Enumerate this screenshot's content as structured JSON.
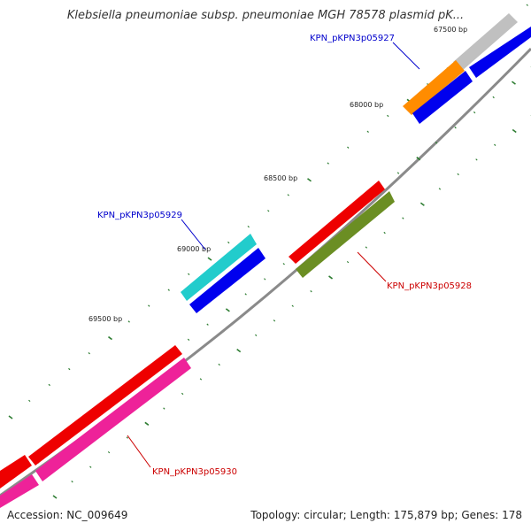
{
  "title": "Klebsiella pneumoniae subsp. pneumoniae MGH 78578 plasmid pK...",
  "footer": {
    "accession": "Accession: NC_009649",
    "summary": "Topology: circular; Length: 175,879 bp; Genes: 178"
  },
  "bp_ticks": [
    "67500 bp",
    "68000 bp",
    "68500 bp",
    "69000 bp",
    "69500 bp"
  ],
  "gene_labels": [
    {
      "text": "KPN_pKPN3p05927",
      "color": "#0000cc"
    },
    {
      "text": "KPN_pKPN3p05929",
      "color": "#0000cc"
    },
    {
      "text": "KPN_pKPN3p05928",
      "color": "#cc0000"
    },
    {
      "text": "KPN_pKPN3p05930",
      "color": "#cc0000"
    }
  ],
  "colors": {
    "backbone": "#888888",
    "tick": "#2e7d32",
    "red": "#ee0000",
    "blue": "#0000ee",
    "cyan": "#22cccc",
    "olive": "#6b8e23",
    "orange": "#ff8c00",
    "pink": "#ee2299",
    "gray": "#c0c0c0"
  }
}
